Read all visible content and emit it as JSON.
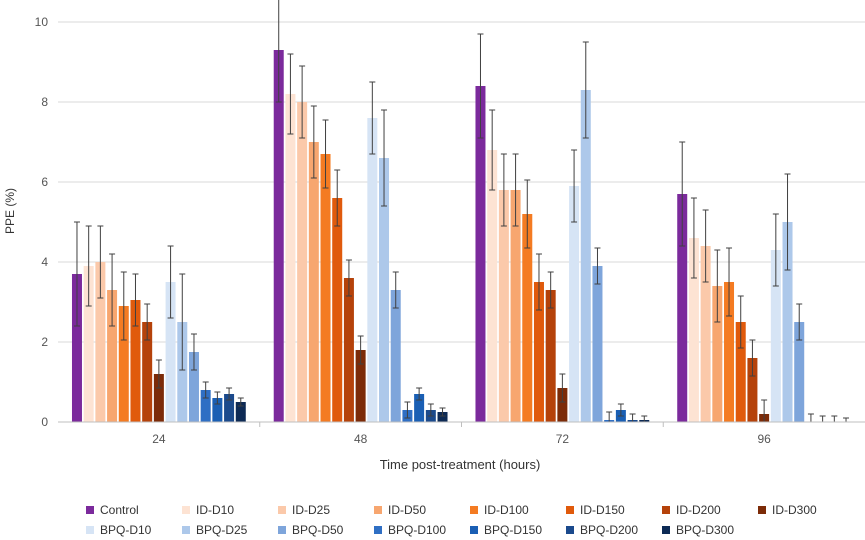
{
  "chart_data": {
    "type": "bar",
    "title": "",
    "xlabel": "Time post-treatment (hours)",
    "ylabel": "PPE (%)",
    "ylim": [
      0,
      10
    ],
    "yticks": [
      0,
      2,
      4,
      6,
      8,
      10
    ],
    "grid": true,
    "legend_position": "bottom",
    "categories": [
      "24",
      "48",
      "72",
      "96"
    ],
    "series": [
      {
        "name": "Control",
        "color": "#7b2a9c",
        "values": [
          3.7,
          9.3,
          8.4,
          5.7
        ],
        "errors": [
          1.3,
          1.3,
          1.3,
          1.3
        ]
      },
      {
        "name": "ID-D10",
        "color": "#fde3d3",
        "values": [
          3.9,
          8.2,
          6.8,
          4.6
        ],
        "errors": [
          1.0,
          1.0,
          1.0,
          1.0
        ]
      },
      {
        "name": "ID-D25",
        "color": "#fbc9aa",
        "values": [
          4.0,
          8.0,
          5.8,
          4.4
        ],
        "errors": [
          0.9,
          0.9,
          0.9,
          0.9
        ]
      },
      {
        "name": "ID-D50",
        "color": "#f7a66f",
        "values": [
          3.3,
          7.0,
          5.8,
          3.4
        ],
        "errors": [
          0.9,
          0.9,
          0.9,
          0.9
        ]
      },
      {
        "name": "ID-D100",
        "color": "#f47b22",
        "values": [
          2.9,
          6.7,
          5.2,
          3.5
        ],
        "errors": [
          0.85,
          0.85,
          0.85,
          0.85
        ]
      },
      {
        "name": "ID-D150",
        "color": "#e05a0c",
        "values": [
          3.05,
          5.6,
          3.5,
          2.5
        ],
        "errors": [
          0.65,
          0.7,
          0.7,
          0.65
        ]
      },
      {
        "name": "ID-D200",
        "color": "#b5420a",
        "values": [
          2.5,
          3.6,
          3.3,
          1.6
        ],
        "errors": [
          0.45,
          0.45,
          0.45,
          0.45
        ]
      },
      {
        "name": "ID-D300",
        "color": "#7c2b08",
        "values": [
          1.2,
          1.8,
          0.85,
          0.2
        ],
        "errors": [
          0.35,
          0.35,
          0.35,
          0.35
        ]
      },
      {
        "name": "BPQ-D10",
        "color": "#d6e4f5",
        "values": [
          3.5,
          7.6,
          5.9,
          4.3
        ],
        "errors": [
          0.9,
          0.9,
          0.9,
          0.9
        ]
      },
      {
        "name": "BPQ-D25",
        "color": "#adc8ea",
        "values": [
          2.5,
          6.6,
          8.3,
          5.0
        ],
        "errors": [
          1.2,
          1.2,
          1.2,
          1.2
        ]
      },
      {
        "name": "BPQ-D50",
        "color": "#7ea5db",
        "values": [
          1.75,
          3.3,
          3.9,
          2.5
        ],
        "errors": [
          0.45,
          0.45,
          0.45,
          0.45
        ]
      },
      {
        "name": "BPQ-D100",
        "color": "#2f6fc4",
        "values": [
          0.8,
          0.3,
          0.05,
          0.0
        ],
        "errors": [
          0.2,
          0.2,
          0.2,
          0.2
        ]
      },
      {
        "name": "BPQ-D150",
        "color": "#1a5fb4",
        "values": [
          0.6,
          0.7,
          0.3,
          0.0
        ],
        "errors": [
          0.15,
          0.15,
          0.15,
          0.15
        ]
      },
      {
        "name": "BPQ-D200",
        "color": "#1b4a8c",
        "values": [
          0.7,
          0.3,
          0.05,
          0.0
        ],
        "errors": [
          0.15,
          0.15,
          0.15,
          0.15
        ]
      },
      {
        "name": "BPQ-D300",
        "color": "#0d2a55",
        "values": [
          0.5,
          0.25,
          0.05,
          0.0
        ],
        "errors": [
          0.1,
          0.1,
          0.1,
          0.1
        ]
      }
    ]
  }
}
